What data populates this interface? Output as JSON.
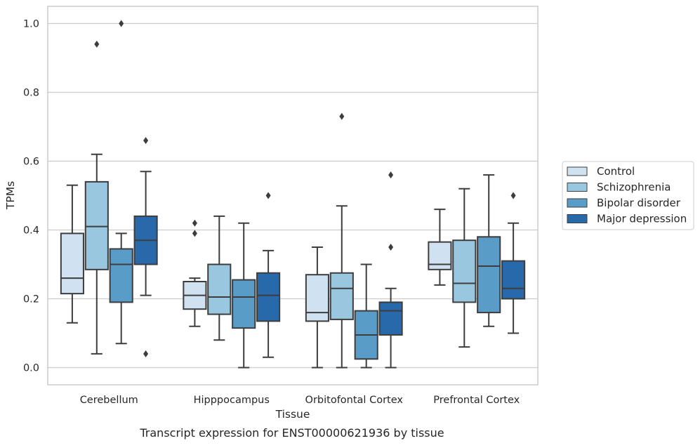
{
  "caption": "Transcript expression for ENST00000621936 by tissue",
  "chart_data": {
    "type": "box",
    "xlabel": "Tissue",
    "ylabel": "TPMs",
    "ylim": [
      -0.05,
      1.05
    ],
    "yticks": [
      0.0,
      0.2,
      0.4,
      0.6,
      0.8,
      1.0
    ],
    "ytick_labels": [
      "0.0",
      "0.2",
      "0.4",
      "0.6",
      "0.8",
      "1.0"
    ],
    "grid": "horizontal",
    "legend_position": "right",
    "categories": [
      "Cerebellum",
      "Hipppocampus",
      "Orbitofontal Cortex",
      "Prefrontal Cortex"
    ],
    "series": [
      {
        "name": "Control",
        "color": "#d0e1f2",
        "boxes": [
          {
            "min": 0.13,
            "q1": 0.215,
            "median": 0.26,
            "q3": 0.39,
            "max": 0.53,
            "outliers": []
          },
          {
            "min": 0.12,
            "q1": 0.17,
            "median": 0.21,
            "q3": 0.25,
            "max": 0.26,
            "outliers": [
              0.42,
              0.39
            ]
          },
          {
            "min": 0.0,
            "q1": 0.135,
            "median": 0.16,
            "q3": 0.27,
            "max": 0.35,
            "outliers": []
          },
          {
            "min": 0.24,
            "q1": 0.285,
            "median": 0.3,
            "q3": 0.365,
            "max": 0.46,
            "outliers": []
          }
        ]
      },
      {
        "name": "Schizophrenia",
        "color": "#9ac7e0",
        "boxes": [
          {
            "min": 0.04,
            "q1": 0.285,
            "median": 0.41,
            "q3": 0.54,
            "max": 0.62,
            "outliers": [
              0.94
            ]
          },
          {
            "min": 0.08,
            "q1": 0.155,
            "median": 0.205,
            "q3": 0.3,
            "max": 0.44,
            "outliers": []
          },
          {
            "min": 0.0,
            "q1": 0.14,
            "median": 0.23,
            "q3": 0.275,
            "max": 0.47,
            "outliers": [
              0.73
            ]
          },
          {
            "min": 0.06,
            "q1": 0.19,
            "median": 0.245,
            "q3": 0.37,
            "max": 0.52,
            "outliers": []
          }
        ]
      },
      {
        "name": "Bipolar disorder",
        "color": "#5a9cc8",
        "boxes": [
          {
            "min": 0.07,
            "q1": 0.19,
            "median": 0.3,
            "q3": 0.345,
            "max": 0.39,
            "outliers": [
              1.0
            ]
          },
          {
            "min": 0.0,
            "q1": 0.115,
            "median": 0.205,
            "q3": 0.255,
            "max": 0.42,
            "outliers": []
          },
          {
            "min": 0.0,
            "q1": 0.025,
            "median": 0.095,
            "q3": 0.165,
            "max": 0.3,
            "outliers": []
          },
          {
            "min": 0.12,
            "q1": 0.16,
            "median": 0.295,
            "q3": 0.38,
            "max": 0.56,
            "outliers": []
          }
        ]
      },
      {
        "name": "Major depression",
        "color": "#2769ab",
        "boxes": [
          {
            "min": 0.21,
            "q1": 0.3,
            "median": 0.37,
            "q3": 0.44,
            "max": 0.57,
            "outliers": [
              0.66,
              0.04
            ]
          },
          {
            "min": 0.03,
            "q1": 0.135,
            "median": 0.21,
            "q3": 0.275,
            "max": 0.34,
            "outliers": [
              0.5
            ]
          },
          {
            "min": 0.0,
            "q1": 0.095,
            "median": 0.165,
            "q3": 0.19,
            "max": 0.23,
            "outliers": [
              0.56,
              0.35
            ]
          },
          {
            "min": 0.1,
            "q1": 0.2,
            "median": 0.23,
            "q3": 0.31,
            "max": 0.42,
            "outliers": [
              0.5
            ]
          }
        ]
      }
    ]
  }
}
